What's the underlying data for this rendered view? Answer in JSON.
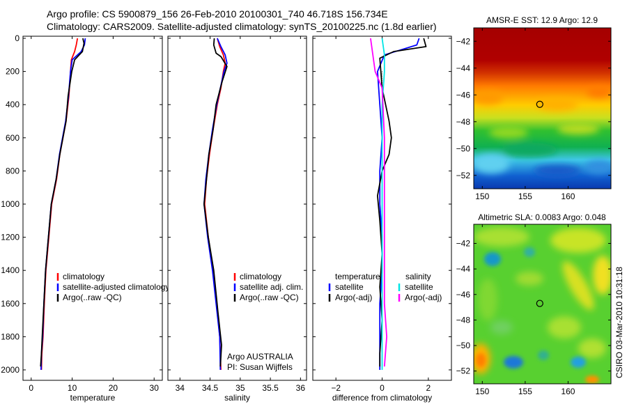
{
  "header": {
    "line1": "Argo profile: CS 5900879_156 26-Feb-2010 20100301_740 46.718S 156.734E",
    "line2": "Climatology: CARS2009. Satellite-adjusted climatology: synTS_20100225.nc (1.8d earlier)"
  },
  "side_label": "CSIRO 03-Mar-2010 10:31:18",
  "colors": {
    "climatology": "#ff0000",
    "satellite": "#0000ff",
    "argo": "#000000",
    "diff_sat_temp": "#0000ff",
    "diff_sat_sal": "#00e5e5",
    "diff_argo_sal": "#ff00ff"
  },
  "chart_data": [
    {
      "type": "line",
      "id": "temperature",
      "xlabel": "temperature",
      "xlim": [
        -2,
        32
      ],
      "ylim": [
        2060,
        0
      ],
      "xticks": [
        0,
        10,
        20,
        30
      ],
      "yticks": [
        0,
        200,
        400,
        600,
        800,
        1000,
        1200,
        1400,
        1600,
        1800,
        2000
      ],
      "legend": {
        "placement": "bottom-right",
        "entries": [
          "climatology",
          "satellite-adjusted climatology",
          "Argo(..raw -QC)"
        ]
      },
      "series": [
        {
          "name": "climatology",
          "color": "#ff0000",
          "x": [
            11.3,
            11.0,
            10.6,
            9.8,
            9.6,
            9.2,
            8.5,
            7.0,
            6.2,
            5.0,
            4.3,
            3.6,
            3.2,
            2.9,
            2.6,
            2.5
          ],
          "y": [
            0,
            40,
            80,
            130,
            200,
            350,
            500,
            700,
            850,
            1000,
            1200,
            1400,
            1600,
            1800,
            1900,
            2000
          ]
        },
        {
          "name": "satellite-adjusted climatology",
          "color": "#0000ff",
          "x": [
            13.2,
            13.0,
            12.2,
            10.0,
            9.6,
            9.1,
            8.4,
            6.9,
            6.1,
            4.9,
            4.2,
            3.5,
            3.1,
            2.8,
            2.5,
            2.4
          ],
          "y": [
            0,
            40,
            80,
            130,
            200,
            350,
            500,
            700,
            850,
            1000,
            1200,
            1400,
            1600,
            1800,
            1900,
            2000
          ]
        },
        {
          "name": "Argo(..raw -QC)",
          "color": "#000000",
          "x": [
            12.6,
            12.9,
            12.5,
            10.6,
            9.9,
            9.0,
            8.5,
            7.0,
            6.1,
            4.9,
            4.2,
            3.5,
            3.1,
            2.7,
            2.5,
            2.3
          ],
          "y": [
            0,
            30,
            80,
            130,
            200,
            350,
            500,
            700,
            850,
            1000,
            1200,
            1400,
            1600,
            1800,
            1900,
            1980
          ]
        }
      ]
    },
    {
      "type": "line",
      "id": "salinity",
      "xlabel": "salinity",
      "xlim": [
        33.8,
        36.1
      ],
      "ylim": [
        2060,
        0
      ],
      "xticks": [
        34,
        34.5,
        35,
        35.5,
        36
      ],
      "yticks": [
        0,
        200,
        400,
        600,
        800,
        1000,
        1200,
        1400,
        1600,
        1800,
        2000
      ],
      "legend": {
        "placement": "bottom-right",
        "entries": [
          "climatology",
          "satellite adj. clim.",
          "Argo(..raw -QC)"
        ]
      },
      "annotation": [
        "Argo AUSTRALIA",
        "PI: Susan Wijffels"
      ],
      "series": [
        {
          "name": "climatology",
          "color": "#ff0000",
          "x": [
            34.62,
            34.66,
            34.72,
            34.75,
            34.72,
            34.68,
            34.62,
            34.55,
            34.49,
            34.44,
            34.41,
            34.47,
            34.55,
            34.61,
            34.66,
            34.68
          ],
          "y": [
            0,
            50,
            100,
            150,
            200,
            300,
            400,
            550,
            700,
            850,
            1000,
            1200,
            1400,
            1600,
            1800,
            2000
          ]
        },
        {
          "name": "satellite adj. clim.",
          "color": "#0000ff",
          "x": [
            34.62,
            34.68,
            34.75,
            34.78,
            34.73,
            34.67,
            34.61,
            34.54,
            34.48,
            34.43,
            34.4,
            34.46,
            34.54,
            34.6,
            34.66,
            34.67
          ],
          "y": [
            0,
            50,
            100,
            150,
            200,
            300,
            400,
            550,
            700,
            850,
            1000,
            1200,
            1400,
            1600,
            1800,
            2000
          ]
        },
        {
          "name": "Argo(..raw -QC)",
          "color": "#000000",
          "x": [
            34.57,
            34.56,
            34.6,
            34.68,
            34.78,
            34.7,
            34.6,
            34.55,
            34.48,
            34.44,
            34.4,
            34.47,
            34.56,
            34.63,
            34.69,
            34.67
          ],
          "y": [
            0,
            40,
            90,
            110,
            170,
            260,
            400,
            550,
            700,
            850,
            1000,
            1200,
            1400,
            1650,
            1850,
            1980
          ]
        }
      ]
    },
    {
      "type": "line",
      "id": "difference",
      "xlabel": "difference from climatology",
      "xlim": [
        -3,
        3
      ],
      "ylim": [
        2060,
        0
      ],
      "xticks": [
        -2,
        0,
        2
      ],
      "yticks": [
        0,
        200,
        400,
        600,
        800,
        1000,
        1200,
        1400,
        1600,
        1800,
        2000
      ],
      "legend": {
        "placement": "bottom",
        "entries": [
          "temperature",
          "satellite",
          "Argo(-adj)",
          "salinity",
          "satellite",
          "Argo(-adj)"
        ]
      },
      "series": [
        {
          "name": "temperature satellite",
          "color": "#0000ff",
          "x": [
            1.6,
            1.5,
            0.8,
            0.1,
            -0.2,
            -0.1,
            0.0,
            -0.1,
            -0.1,
            0.0,
            0.0,
            -0.1,
            -0.1,
            -0.1,
            -0.1
          ],
          "y": [
            0,
            40,
            70,
            100,
            200,
            400,
            600,
            800,
            1000,
            1200,
            1400,
            1600,
            1800,
            1900,
            2000
          ]
        },
        {
          "name": "temperature Argo(-adj)",
          "color": "#000000",
          "x": [
            1.8,
            1.9,
            0.5,
            -0.1,
            0.0,
            0.3,
            0.4,
            0.3,
            0.0,
            -0.2,
            -0.1,
            0.0,
            -0.1,
            0.0,
            -0.1,
            -0.1
          ],
          "y": [
            0,
            50,
            80,
            120,
            300,
            500,
            600,
            700,
            800,
            950,
            1100,
            1300,
            1500,
            1700,
            1900,
            1980
          ]
        },
        {
          "name": "salinity satellite",
          "color": "#00e5e5",
          "x": [
            0.0,
            0.1,
            0.1,
            0.0,
            0.0,
            0.0,
            0.0,
            0.0,
            0.0,
            0.0,
            0.0
          ],
          "y": [
            0,
            100,
            200,
            400,
            600,
            800,
            1000,
            1200,
            1400,
            1600,
            2000
          ]
        },
        {
          "name": "salinity Argo(-adj)",
          "color": "#ff00ff",
          "x": [
            -0.5,
            -0.4,
            -0.3,
            0.0,
            0.1,
            0.1,
            0.1,
            0.1,
            0.1,
            0.1,
            0.2,
            0.1
          ],
          "y": [
            0,
            100,
            200,
            300,
            600,
            800,
            1000,
            1200,
            1400,
            1600,
            1800,
            1980
          ]
        }
      ]
    },
    {
      "type": "heatmap",
      "id": "sst-map",
      "title": "AMSR-E SST: 12.9 Argo: 12.9",
      "xlim": [
        149,
        165
      ],
      "ylim": [
        -53,
        -41
      ],
      "xticks": [
        150,
        155,
        160
      ],
      "yticks": [
        -42,
        -44,
        -46,
        -48,
        -50,
        -52
      ],
      "marker": {
        "lon": 156.7,
        "lat": -46.7
      }
    },
    {
      "type": "heatmap",
      "id": "sla-map",
      "title": "Altimetric SLA: 0.0083 Argo: 0.048",
      "xlim": [
        149,
        165
      ],
      "ylim": [
        -53,
        -40.5
      ],
      "xticks": [
        150,
        155,
        160
      ],
      "yticks": [
        -42,
        -44,
        -46,
        -48,
        -50,
        -52
      ],
      "marker": {
        "lon": 156.7,
        "lat": -46.7
      }
    }
  ]
}
